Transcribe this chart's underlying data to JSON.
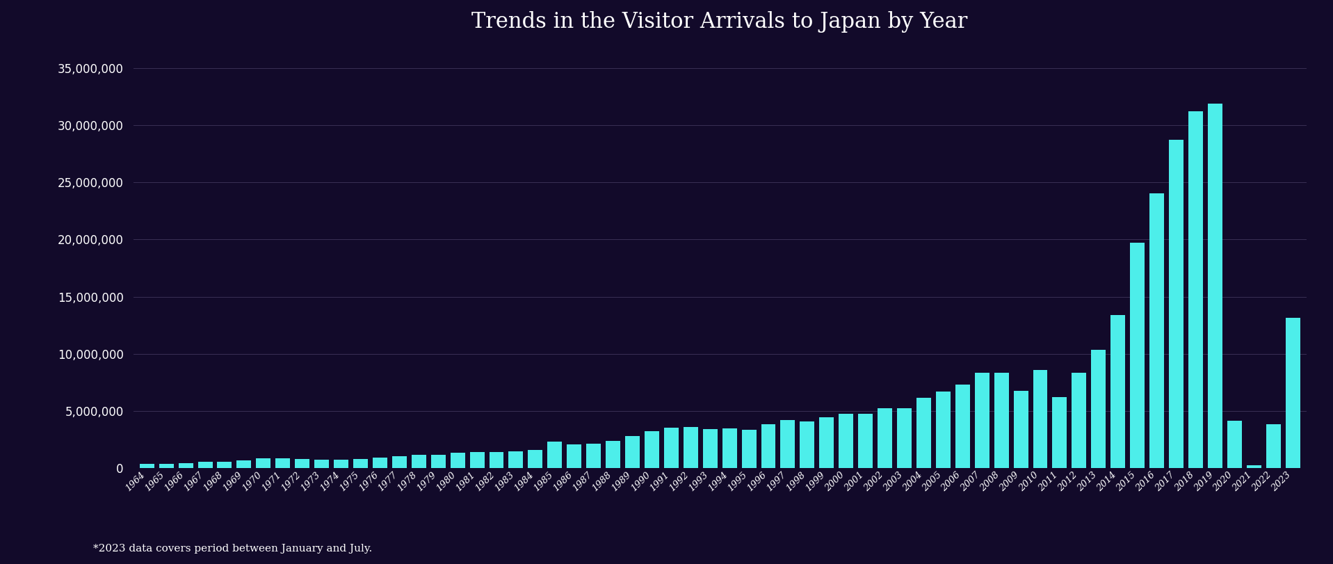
{
  "title": "Trends in the Visitor Arrivals to Japan by Year",
  "footnote": "*2023 data covers period between January and July.",
  "background_color": "#120a2a",
  "bar_color": "#4DEEEA",
  "grid_color": "#3a3055",
  "text_color": "#ffffff",
  "title_fontsize": 22,
  "years": [
    1964,
    1965,
    1966,
    1967,
    1968,
    1969,
    1970,
    1971,
    1972,
    1973,
    1974,
    1975,
    1976,
    1977,
    1978,
    1979,
    1980,
    1981,
    1982,
    1983,
    1984,
    1985,
    1986,
    1987,
    1988,
    1989,
    1990,
    1991,
    1992,
    1993,
    1994,
    1995,
    1996,
    1997,
    1998,
    1999,
    2000,
    2001,
    2002,
    2003,
    2004,
    2005,
    2006,
    2007,
    2008,
    2009,
    2010,
    2011,
    2012,
    2013,
    2014,
    2015,
    2016,
    2017,
    2018,
    2019,
    2020,
    2021,
    2022,
    2023
  ],
  "values": [
    352832,
    367610,
    439769,
    531904,
    582243,
    669785,
    854115,
    861130,
    790711,
    753049,
    762004,
    811672,
    915187,
    1029553,
    1154152,
    1150973,
    1316781,
    1404013,
    1433456,
    1449998,
    1591461,
    2326944,
    2061394,
    2158978,
    2360588,
    2835600,
    3235628,
    3532613,
    3581658,
    3410449,
    3468005,
    3345244,
    3836210,
    4218400,
    4108999,
    4437913,
    4757146,
    4771864,
    5239725,
    5211725,
    6137905,
    6727926,
    7334077,
    8346969,
    8350835,
    6789658,
    8611175,
    6218752,
    8358105,
    10364499,
    13413467,
    19737409,
    24039700,
    28691073,
    31191856,
    31882049,
    4115828,
    245862,
    3832110,
    13126000
  ],
  "ylim": [
    0,
    37000000
  ],
  "yticks": [
    0,
    5000000,
    10000000,
    15000000,
    20000000,
    25000000,
    30000000,
    35000000
  ]
}
